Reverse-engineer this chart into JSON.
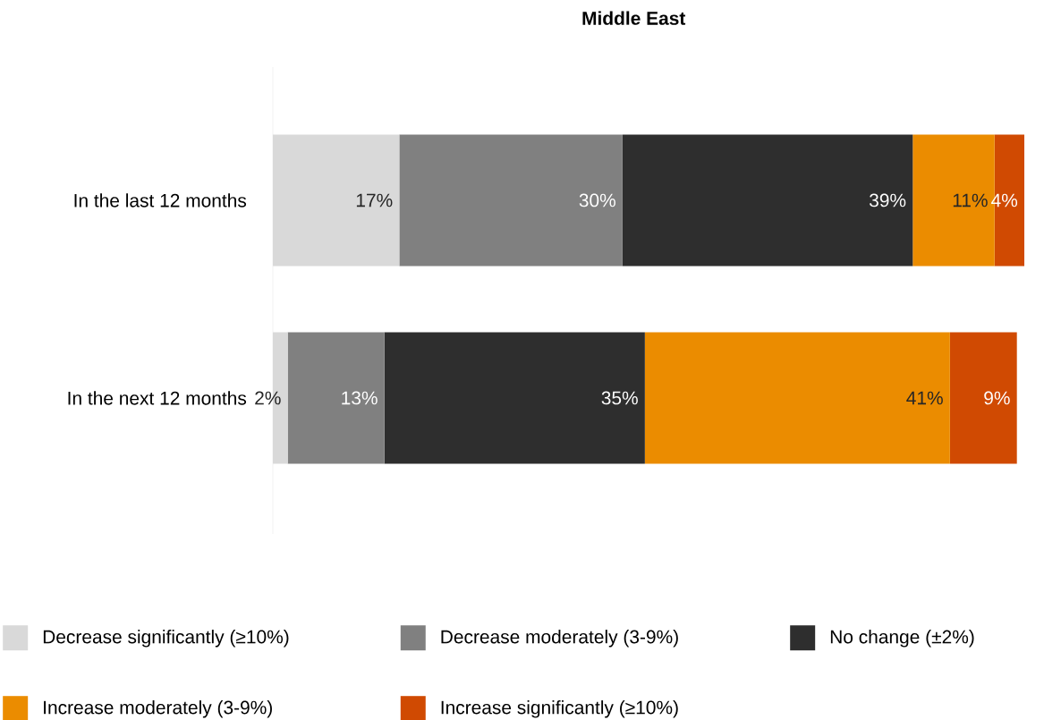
{
  "chart_data": {
    "type": "bar",
    "orientation": "horizontal",
    "stacked": true,
    "title": "Middle East",
    "categories": [
      "In the last 12 months",
      "In the next 12 months"
    ],
    "series": [
      {
        "name": "Decrease significantly (≥10%)",
        "color": "#d9d9d9",
        "values": [
          17,
          2
        ],
        "value_labels": [
          "17%",
          "2%"
        ]
      },
      {
        "name": "Decrease moderately (3-9%)",
        "color": "#808080",
        "values": [
          30,
          13
        ],
        "value_labels": [
          "30%",
          "13%"
        ]
      },
      {
        "name": "No change (±2%)",
        "color": "#2e2e2e",
        "values": [
          39,
          35
        ],
        "value_labels": [
          "39%",
          "35%"
        ]
      },
      {
        "name": "Increase moderately (3-9%)",
        "color": "#eb8c00",
        "values": [
          11,
          41
        ],
        "value_labels": [
          "11%",
          "41%"
        ]
      },
      {
        "name": "Increase significantly (≥10%)",
        "color": "#d04a02",
        "values": [
          4,
          9
        ],
        "value_labels": [
          "4%",
          "9%"
        ]
      }
    ],
    "legend": "bottom",
    "grid": false
  }
}
